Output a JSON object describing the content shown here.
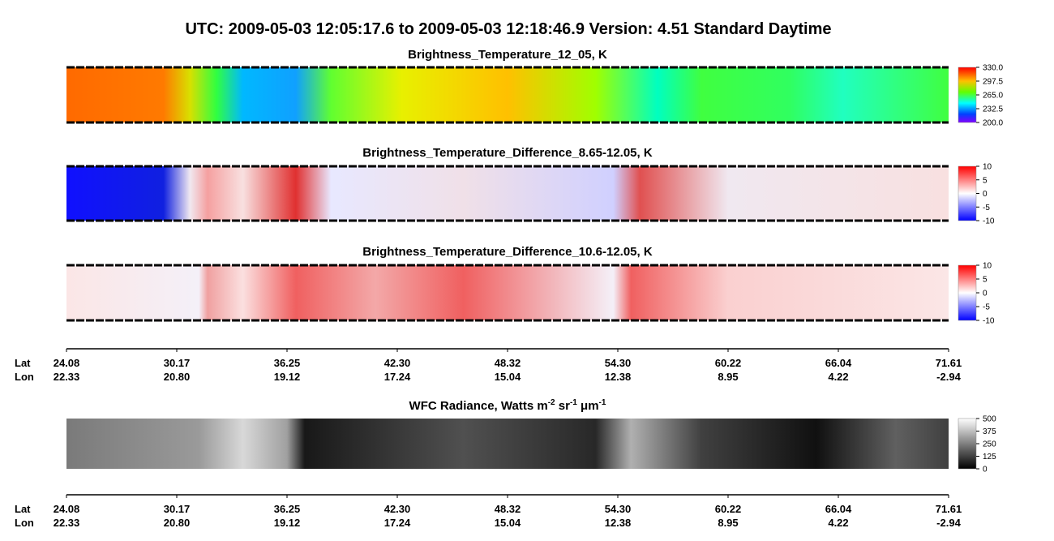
{
  "title": "UTC:  2009-05-03   12:05:17.6  to  2009-05-03   12:18:46.9    Version: 4.51  Standard Daytime",
  "panels": [
    {
      "title": "Brightness_Temperature_12_05, K",
      "colorbar": [
        "330.0",
        "297.5",
        "265.0",
        "232.5",
        "200.0"
      ]
    },
    {
      "title": "Brightness_Temperature_Difference_8.65-12.05, K",
      "colorbar": [
        "10",
        "5",
        "0",
        "-5",
        "-10"
      ]
    },
    {
      "title": "Brightness_Temperature_Difference_10.6-12.05, K",
      "colorbar": [
        "10",
        "5",
        "0",
        "-5",
        "-10"
      ]
    },
    {
      "title_parts": [
        "WFC Radiance, Watts m",
        "-2",
        " sr",
        "-1",
        " μm",
        "-1"
      ],
      "colorbar": [
        "500",
        "375",
        "250",
        "125",
        "0"
      ]
    }
  ],
  "axes": [
    {
      "lat_label": "Lat",
      "lon_label": "Lon",
      "lat": [
        "24.08",
        "30.17",
        "36.25",
        "42.30",
        "48.32",
        "54.30",
        "60.22",
        "66.04",
        "71.61"
      ],
      "lon": [
        "22.33",
        "20.80",
        "19.12",
        "17.24",
        "15.04",
        "12.38",
        "8.95",
        "4.22",
        "-2.94"
      ]
    },
    {
      "lat_label": "Lat",
      "lon_label": "Lon",
      "lat": [
        "24.08",
        "30.17",
        "36.25",
        "42.30",
        "48.32",
        "54.30",
        "60.22",
        "66.04",
        "71.61"
      ],
      "lon": [
        "22.33",
        "20.80",
        "19.12",
        "17.24",
        "15.04",
        "12.38",
        "8.95",
        "4.22",
        "-2.94"
      ]
    }
  ]
}
